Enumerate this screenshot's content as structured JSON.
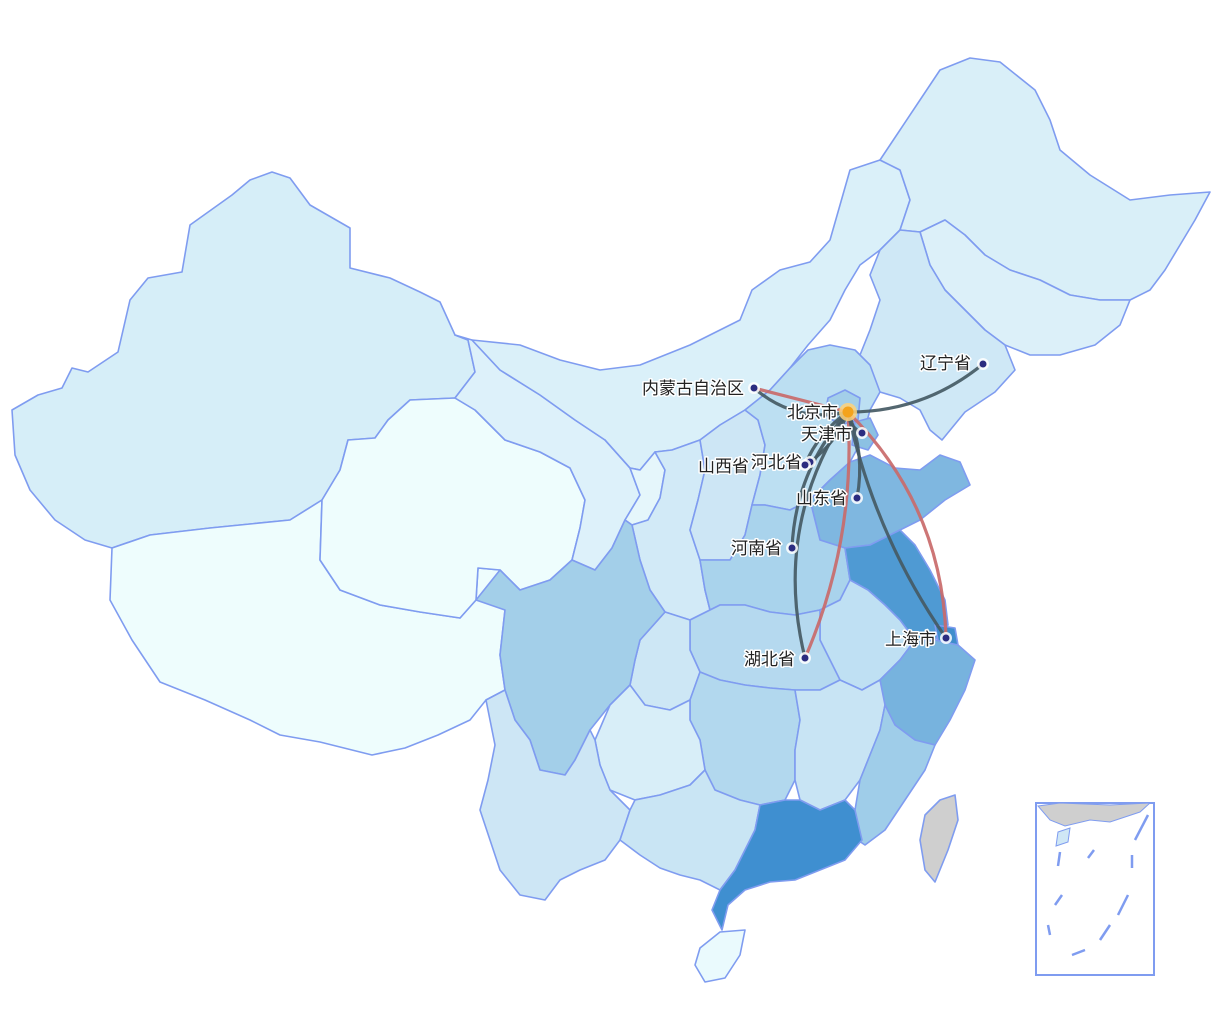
{
  "map": {
    "origin": "北京市",
    "colors": {
      "border": "#7f9cf0",
      "flow_dark": "#455a64",
      "flow_red": "#c96a6a",
      "origin_dot": "#f4a31c",
      "city_dot": "#2b2c80",
      "taiwan": "#cfcfcf"
    },
    "cities": [
      {
        "name": "北京市",
        "label": "北京市",
        "role": "origin"
      },
      {
        "name": "天津市",
        "label": "天津市"
      },
      {
        "name": "河北省",
        "label": "河北省"
      },
      {
        "name": "山西省",
        "label": "山西省"
      },
      {
        "name": "内蒙古自治区",
        "label": "内蒙古自治区"
      },
      {
        "name": "辽宁省",
        "label": "辽宁省"
      },
      {
        "name": "山东省",
        "label": "山东省"
      },
      {
        "name": "河南省",
        "label": "河南省"
      },
      {
        "name": "湖北省",
        "label": "湖北省"
      },
      {
        "name": "上海市",
        "label": "上海市"
      }
    ],
    "flows": [
      {
        "from": "北京市",
        "to": "内蒙古自治区",
        "style": "dark"
      },
      {
        "from": "内蒙古自治区",
        "to": "北京市",
        "style": "red"
      },
      {
        "from": "北京市",
        "to": "辽宁省",
        "style": "dark"
      },
      {
        "from": "北京市",
        "to": "天津市",
        "style": "dark"
      },
      {
        "from": "北京市",
        "to": "河北省",
        "style": "dark"
      },
      {
        "from": "北京市",
        "to": "山西省",
        "style": "dark"
      },
      {
        "from": "北京市",
        "to": "山东省",
        "style": "dark"
      },
      {
        "from": "北京市",
        "to": "河南省",
        "style": "dark"
      },
      {
        "from": "北京市",
        "to": "湖北省",
        "style": "dark"
      },
      {
        "from": "湖北省",
        "to": "北京市",
        "style": "red"
      },
      {
        "from": "北京市",
        "to": "上海市",
        "style": "dark"
      },
      {
        "from": "上海市",
        "to": "北京市",
        "style": "red"
      }
    ]
  }
}
